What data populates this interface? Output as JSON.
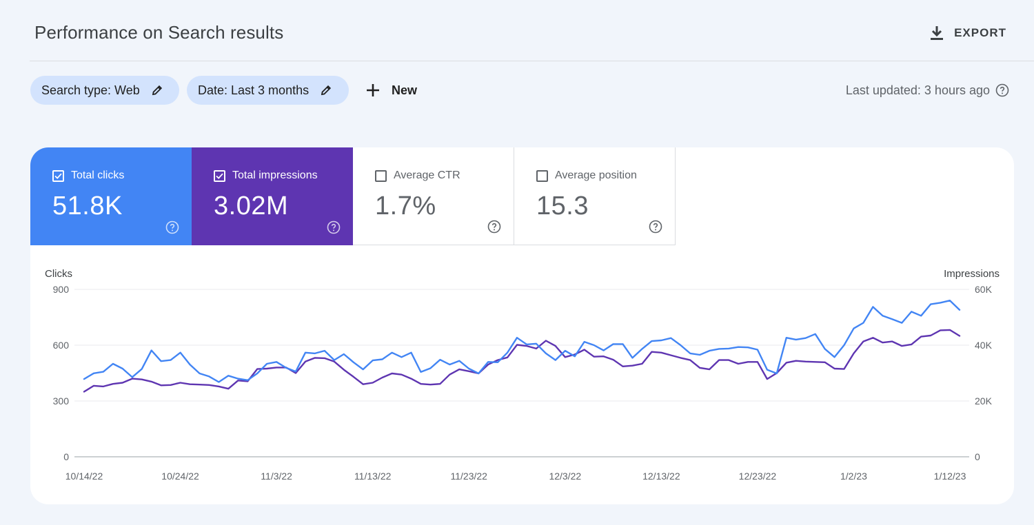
{
  "header": {
    "title": "Performance on Search results",
    "export_label": "EXPORT"
  },
  "filters": {
    "search_type": "Search type: Web",
    "date": "Date: Last 3 months",
    "new_label": "New",
    "last_updated": "Last updated: 3 hours ago"
  },
  "metrics": [
    {
      "label": "Total clicks",
      "value": "51.8K",
      "checked": true,
      "color": "#4285f4"
    },
    {
      "label": "Total impressions",
      "value": "3.02M",
      "checked": true,
      "color": "#5e35b1"
    },
    {
      "label": "Average CTR",
      "value": "1.7%",
      "checked": false
    },
    {
      "label": "Average position",
      "value": "15.3",
      "checked": false
    }
  ],
  "chart_data": {
    "type": "line",
    "left_axis_title": "Clicks",
    "right_axis_title": "Impressions",
    "left_ticks": [
      "0",
      "300",
      "600",
      "900"
    ],
    "right_ticks": [
      "0",
      "20K",
      "40K",
      "60K"
    ],
    "ylim_left": [
      0,
      900
    ],
    "ylim_right": [
      0,
      60000
    ],
    "x_tick_labels": [
      "10/14/22",
      "10/24/22",
      "11/3/22",
      "11/13/22",
      "11/23/22",
      "12/3/22",
      "12/13/22",
      "12/23/22",
      "1/2/23",
      "1/12/23"
    ],
    "x_tick_index": [
      0,
      10,
      20,
      30,
      40,
      50,
      60,
      70,
      80,
      90
    ],
    "grid": true,
    "series": [
      {
        "name": "Clicks",
        "axis": "left",
        "color": "#4285f4",
        "values": [
          418,
          449,
          457,
          500,
          474,
          428,
          472,
          572,
          514,
          520,
          560,
          496,
          448,
          432,
          402,
          436,
          420,
          412,
          448,
          500,
          510,
          478,
          458,
          560,
          556,
          570,
          520,
          552,
          508,
          470,
          518,
          524,
          560,
          536,
          560,
          456,
          476,
          522,
          496,
          516,
          474,
          448,
          510,
          508,
          560,
          640,
          604,
          608,
          556,
          520,
          570,
          540,
          618,
          600,
          572,
          606,
          606,
          532,
          580,
          622,
          626,
          638,
          600,
          556,
          548,
          570,
          580,
          582,
          590,
          588,
          576,
          468,
          448,
          640,
          630,
          638,
          660,
          580,
          536,
          600,
          690,
          720,
          806,
          758,
          740,
          720,
          780,
          758,
          820,
          828,
          840,
          790
        ]
      },
      {
        "name": "Impressions",
        "axis": "left",
        "color": "#5e35b1",
        "values": [
          350,
          382,
          378,
          392,
          398,
          420,
          416,
          404,
          384,
          386,
          398,
          390,
          388,
          386,
          378,
          366,
          410,
          406,
          472,
          474,
          480,
          480,
          450,
          512,
          532,
          530,
          512,
          468,
          430,
          390,
          398,
          426,
          448,
          442,
          420,
          392,
          388,
          392,
          442,
          470,
          460,
          448,
          496,
          520,
          534,
          602,
          596,
          582,
          624,
          596,
          536,
          550,
          576,
          538,
          540,
          522,
          486,
          490,
          500,
          564,
          560,
          546,
          532,
          520,
          478,
          470,
          520,
          520,
          500,
          510,
          510,
          418,
          450,
          506,
          516,
          512,
          510,
          508,
          474,
          472,
          556,
          620,
          640,
          614,
          620,
          596,
          604,
          646,
          652,
          680,
          682,
          650
        ]
      }
    ]
  }
}
